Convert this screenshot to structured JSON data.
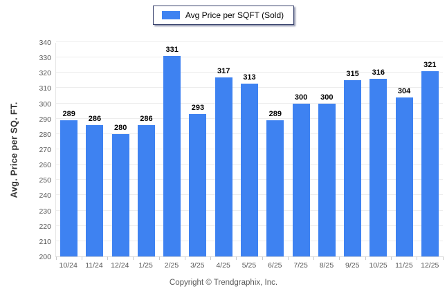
{
  "legend": {
    "label": "Avg Price per SQFT (Sold)"
  },
  "footer": {
    "copyright": "Copyright © Trendgraphix, Inc."
  },
  "colors": {
    "bar": "#3e82f1",
    "legend_border": "#36406b",
    "gridline": "#ededed",
    "tick_text": "#555555",
    "value_text": "#000000",
    "footer_text": "#595959"
  },
  "chart_data": {
    "type": "bar",
    "title": "",
    "xlabel": "",
    "ylabel": "Avg. Price per SQ. FT.",
    "categories": [
      "10/24",
      "11/24",
      "12/24",
      "1/25",
      "2/25",
      "3/25",
      "4/25",
      "5/25",
      "6/25",
      "7/25",
      "8/25",
      "9/25",
      "10/25",
      "11/25",
      "12/25"
    ],
    "values": [
      289,
      286,
      280,
      286,
      331,
      293,
      317,
      313,
      289,
      300,
      300,
      315,
      316,
      304,
      321
    ],
    "series_name": "Avg Price per SQFT (Sold)",
    "ylim": [
      200,
      340
    ],
    "y_tick_step": 10,
    "y_ticks": [
      200,
      210,
      220,
      230,
      240,
      250,
      260,
      270,
      280,
      290,
      300,
      310,
      320,
      330,
      340
    ],
    "grid": true,
    "legend_position": "top-center",
    "data_labels": true
  }
}
